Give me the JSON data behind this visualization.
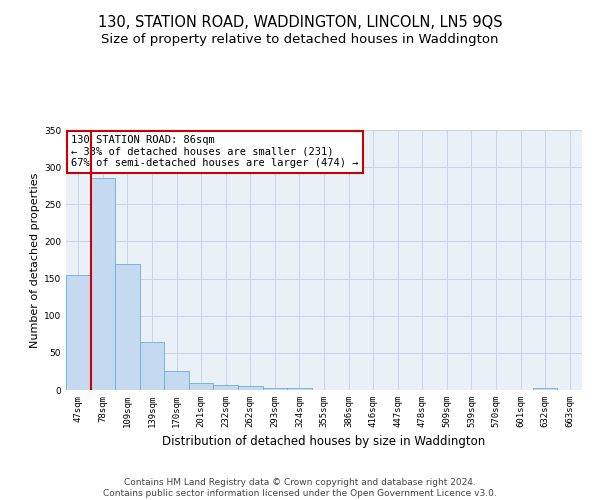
{
  "title": "130, STATION ROAD, WADDINGTON, LINCOLN, LN5 9QS",
  "subtitle": "Size of property relative to detached houses in Waddington",
  "xlabel": "Distribution of detached houses by size in Waddington",
  "ylabel": "Number of detached properties",
  "categories": [
    "47sqm",
    "78sqm",
    "109sqm",
    "139sqm",
    "170sqm",
    "201sqm",
    "232sqm",
    "262sqm",
    "293sqm",
    "324sqm",
    "355sqm",
    "386sqm",
    "416sqm",
    "447sqm",
    "478sqm",
    "509sqm",
    "539sqm",
    "570sqm",
    "601sqm",
    "632sqm",
    "663sqm"
  ],
  "values": [
    155,
    285,
    170,
    65,
    25,
    10,
    7,
    5,
    3,
    3,
    0,
    0,
    0,
    0,
    0,
    0,
    0,
    0,
    0,
    3,
    0
  ],
  "bar_color": "#c5d9f0",
  "bar_edge_color": "#6baed6",
  "vline_x_index": 1,
  "vline_color": "#cc0000",
  "annotation_line1": "130 STATION ROAD: 86sqm",
  "annotation_line2": "← 33% of detached houses are smaller (231)",
  "annotation_line3": "67% of semi-detached houses are larger (474) →",
  "annotation_box_color": "#ffffff",
  "annotation_box_edge_color": "#cc0000",
  "ylim": [
    0,
    350
  ],
  "yticks": [
    0,
    50,
    100,
    150,
    200,
    250,
    300,
    350
  ],
  "grid_color": "#c8d4e8",
  "background_color": "#eaf0f8",
  "footer": "Contains HM Land Registry data © Crown copyright and database right 2024.\nContains public sector information licensed under the Open Government Licence v3.0.",
  "title_fontsize": 10.5,
  "subtitle_fontsize": 9.5,
  "xlabel_fontsize": 8.5,
  "ylabel_fontsize": 8,
  "tick_fontsize": 6.5,
  "annotation_fontsize": 7.5,
  "footer_fontsize": 6.5
}
